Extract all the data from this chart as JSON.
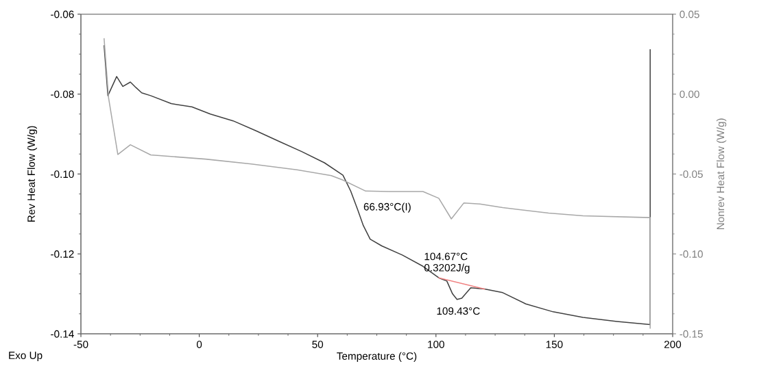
{
  "chart_data": {
    "type": "line",
    "xlabel": "Temperature (°C)",
    "ylabel": "Rev Heat Flow (W/g)",
    "y2label": "Nonrev Heat Flow (W/g)",
    "xlim": [
      -50,
      200
    ],
    "xticks": [
      -50,
      0,
      50,
      100,
      150,
      200
    ],
    "ylim": [
      -0.14,
      -0.06
    ],
    "yticks": [
      {
        "value": -0.14,
        "label": "-0.14"
      },
      {
        "value": -0.12,
        "label": "-0.12"
      },
      {
        "value": -0.1,
        "label": "-0.10"
      },
      {
        "value": -0.08,
        "label": "-0.08"
      },
      {
        "value": -0.06,
        "label": "-0.06"
      }
    ],
    "y2lim": [
      -0.15,
      0.05
    ],
    "y2ticks": [
      {
        "value": -0.15,
        "label": "-0.15"
      },
      {
        "value": -0.1,
        "label": "-0.10"
      },
      {
        "value": -0.05,
        "label": "-0.05"
      },
      {
        "value": 0,
        "label": "0.00"
      },
      {
        "value": 0.05,
        "label": "0.05"
      }
    ],
    "grid": false,
    "legend": false,
    "marker": "none",
    "line_style": "solid",
    "series": [
      {
        "color": "#404040",
        "x": [
          -40.2,
          -38.6,
          -34.9,
          -32.3,
          -29.1,
          -26.7,
          -24.3,
          -20.5,
          -11.8,
          -3.1,
          4.7,
          14.3,
          24.0,
          33.6,
          43.3,
          52.9,
          60.7,
          64.0,
          66.9,
          69.3,
          72.2,
          77.1,
          85.8,
          94.5,
          101.2,
          104.6,
          107.0,
          108.9,
          110.9,
          114.7,
          120.5,
          128.2,
          137.9,
          149.5,
          162.1,
          176.5,
          190.5,
          190.5
        ],
        "values": [
          -0.0679,
          -0.0804,
          -0.0756,
          -0.0781,
          -0.077,
          -0.0784,
          -0.0797,
          -0.0804,
          -0.0824,
          -0.0832,
          -0.085,
          -0.0867,
          -0.0892,
          -0.0918,
          -0.0944,
          -0.0972,
          -0.1003,
          -0.1043,
          -0.1089,
          -0.1129,
          -0.1163,
          -0.118,
          -0.1203,
          -0.1231,
          -0.126,
          -0.1268,
          -0.13,
          -0.1314,
          -0.1311,
          -0.1285,
          -0.1288,
          -0.1297,
          -0.1325,
          -0.1345,
          -0.1359,
          -0.1369,
          -0.1377,
          -0.0689
        ]
      },
      {
        "color": "#a8a8a8",
        "axis": "y2",
        "x": [
          -40.2,
          -38.3,
          -34.4,
          -29.1,
          -20.5,
          2.7,
          22.0,
          41.3,
          55.8,
          60.7,
          70.3,
          80.0,
          94.5,
          101.2,
          106.5,
          111.8,
          118.6,
          128.2,
          147.6,
          162.1,
          190.5,
          190.5
        ],
        "values": [
          0.0346,
          -0.0025,
          -0.0378,
          -0.0317,
          -0.0381,
          -0.0407,
          -0.0438,
          -0.0474,
          -0.051,
          -0.0538,
          -0.0607,
          -0.061,
          -0.061,
          -0.0652,
          -0.0781,
          -0.0681,
          -0.0688,
          -0.071,
          -0.0745,
          -0.0762,
          -0.0773,
          -0.1465
        ]
      },
      {
        "color": "#f08080",
        "x": [
          101.2,
          120.5
        ],
        "values": [
          -0.126,
          -0.1288
        ]
      }
    ],
    "annotations": [
      {
        "text": "66.93°C(I)",
        "x": 66.93,
        "y": -0.1089
      },
      {
        "text": "104.67°C\n0.3202J/g",
        "x": 104.67,
        "y": -0.1268
      },
      {
        "text": "109.43°C",
        "x": 109.43,
        "y": -0.1314
      },
      "Exo Up"
    ]
  }
}
